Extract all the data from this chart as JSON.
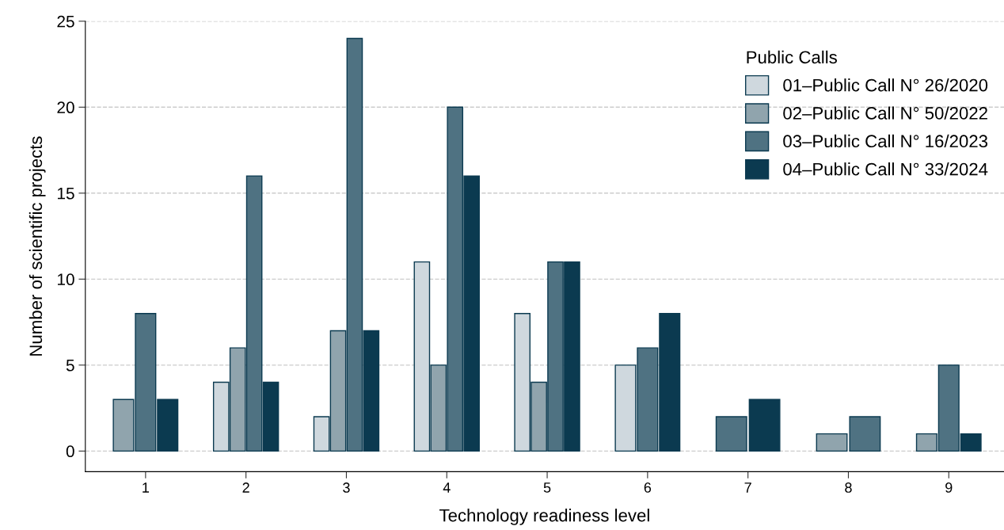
{
  "chart_data": {
    "type": "bar",
    "xlabel": "Technology readiness level",
    "ylabel": "Number of scientific projects",
    "legend_title": "Public Calls",
    "categories": [
      "1",
      "2",
      "3",
      "4",
      "5",
      "6",
      "7",
      "8",
      "9"
    ],
    "series": [
      {
        "name": "01–Public Call N° 26/2020",
        "color": "#cfd8de",
        "values": [
          null,
          4,
          2,
          11,
          8,
          5,
          null,
          null,
          null
        ]
      },
      {
        "name": "02–Public Call N° 50/2022",
        "color": "#90a4ad",
        "values": [
          3,
          6,
          7,
          5,
          4,
          null,
          null,
          1,
          1
        ]
      },
      {
        "name": "03–Public Call N° 16/2023",
        "color": "#4f7282",
        "values": [
          8,
          16,
          24,
          20,
          11,
          6,
          2,
          2,
          5
        ]
      },
      {
        "name": "04–Public Call N° 33/2024",
        "color": "#0b3a50",
        "values": [
          3,
          4,
          7,
          16,
          11,
          8,
          3,
          null,
          1
        ]
      }
    ],
    "ylim": [
      -1.2,
      25
    ],
    "yticks": [
      0,
      5,
      10,
      15,
      20,
      25
    ],
    "grid": "y",
    "legend": "top right"
  }
}
